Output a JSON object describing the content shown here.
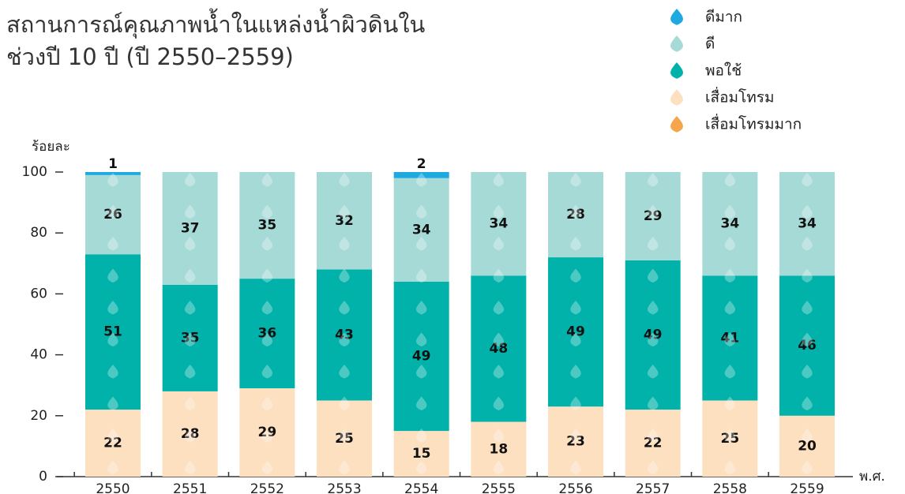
{
  "chart_data": {
    "type": "stacked_bar",
    "title": [
      "สถานการณ์คุณภาพน้ำในแหล่งน้ำผิวดินใน",
      "ช่วงปี 10 ปี (ปี 2550–2559)"
    ],
    "y_label": "ร้อยละ",
    "x_label": "พ.ศ.",
    "categories": [
      "2550",
      "2551",
      "2552",
      "2553",
      "2554",
      "2555",
      "2556",
      "2557",
      "2558",
      "2559"
    ],
    "series": [
      {
        "name": "ดีมาก",
        "color": "#1ea9e1",
        "values": [
          1,
          0,
          0,
          0,
          2,
          0,
          0,
          0,
          0,
          0
        ]
      },
      {
        "name": "ดี",
        "color": "#a6dad7",
        "values": [
          26,
          37,
          35,
          32,
          34,
          34,
          28,
          29,
          34,
          34
        ]
      },
      {
        "name": "พอใช้",
        "color": "#00b2a9",
        "values": [
          51,
          35,
          36,
          43,
          49,
          48,
          49,
          49,
          41,
          46
        ]
      },
      {
        "name": "เสื่อมโทรม",
        "color": "#fde0c0",
        "values": [
          22,
          28,
          29,
          25,
          15,
          18,
          23,
          22,
          25,
          20
        ]
      },
      {
        "name": "เสื่อมโทรมมาก",
        "color": "#f5a54a",
        "values": [
          0,
          0,
          0,
          0,
          0,
          0,
          0,
          0,
          0,
          0
        ]
      }
    ],
    "ylim": [
      0,
      100
    ],
    "yticks": [
      0,
      20,
      40,
      60,
      80,
      100
    ],
    "legend": "top-right"
  }
}
